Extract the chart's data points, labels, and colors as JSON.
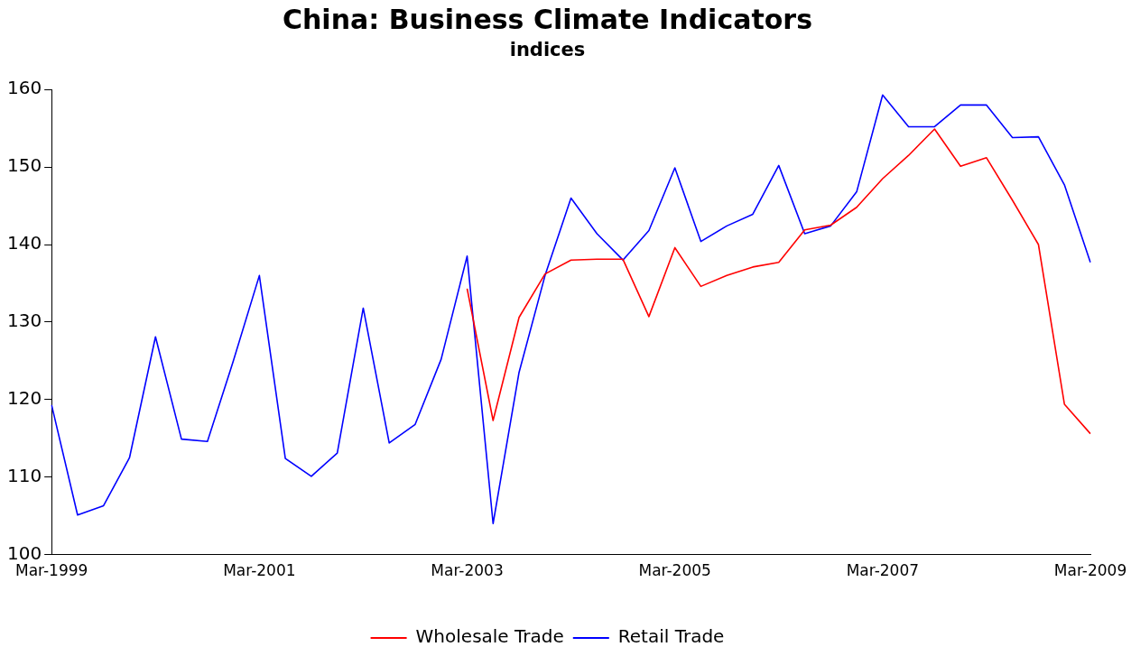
{
  "chart_data": {
    "type": "line",
    "title": "China: Business Climate Indicators",
    "subtitle": "indices",
    "categories": [
      "Mar-1999",
      null,
      null,
      null,
      null,
      null,
      null,
      null,
      "Mar-2001",
      null,
      null,
      null,
      null,
      null,
      null,
      null,
      "Mar-2003",
      null,
      null,
      null,
      null,
      null,
      null,
      null,
      "Mar-2005",
      null,
      null,
      null,
      null,
      null,
      null,
      null,
      "Mar-2007",
      null,
      null,
      null,
      null,
      null,
      null,
      null,
      "Mar-2009"
    ],
    "series": [
      {
        "name": "Wholesale Trade",
        "color": "#ff0000",
        "values": [
          null,
          null,
          null,
          null,
          null,
          null,
          null,
          null,
          null,
          null,
          null,
          null,
          null,
          null,
          null,
          null,
          134.3,
          117.3,
          130.6,
          136.2,
          138,
          138.1,
          138.1,
          130.7,
          139.6,
          134.6,
          136,
          137.1,
          137.7,
          141.9,
          142.5,
          144.8,
          148.5,
          151.5,
          154.9,
          150.1,
          151.2,
          145.7,
          140,
          119.4,
          115.6
        ]
      },
      {
        "name": "Retail Trade",
        "color": "#0000ff",
        "values": [
          119.3,
          105.1,
          106.3,
          112.5,
          128.1,
          114.9,
          114.6,
          125,
          136,
          112.4,
          110.1,
          113.1,
          131.8,
          114.4,
          116.8,
          125.2,
          138.5,
          104,
          123.5,
          136,
          146,
          141.4,
          138,
          141.8,
          149.9,
          140.4,
          142.4,
          143.9,
          150.2,
          141.4,
          142.4,
          146.8,
          159.3,
          155.2,
          155.2,
          158,
          158,
          153.8,
          153.9,
          147.7,
          137.7
        ]
      }
    ],
    "ylim": [
      100,
      160
    ],
    "yticks": [
      100,
      110,
      120,
      130,
      140,
      150,
      160
    ],
    "grid": false,
    "legend": "bottom",
    "marker": "none",
    "line_style": "solid"
  }
}
